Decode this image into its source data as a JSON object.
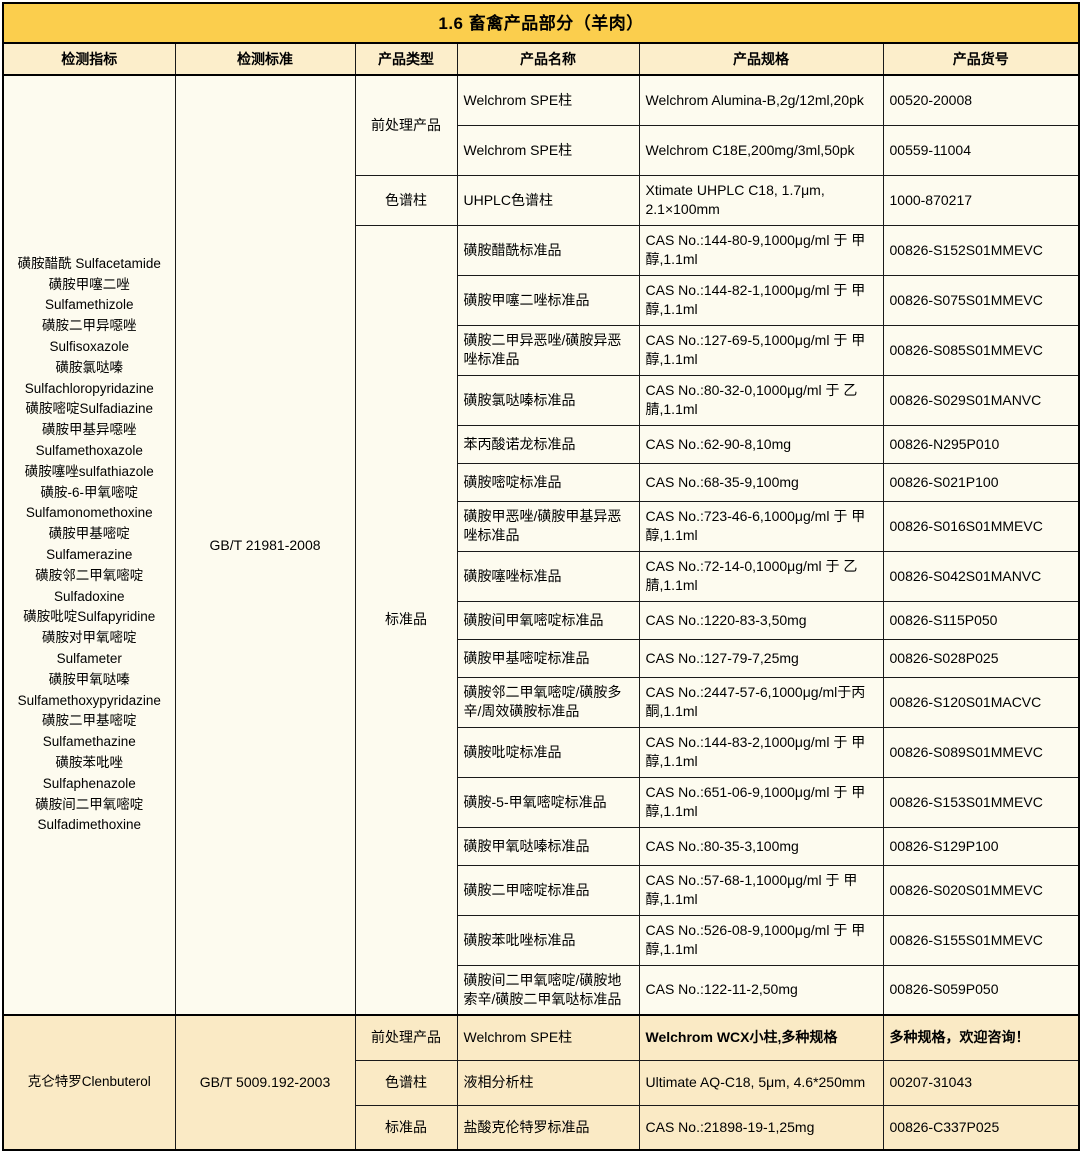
{
  "title": "1.6 畜禽产品部分（羊肉）",
  "columns": [
    "检测指标",
    "检测标准",
    "产品类型",
    "产品名称",
    "产品规格",
    "产品货号"
  ],
  "colors": {
    "title_bg": "#fbce4d",
    "header_bg": "#fceecb",
    "section1_bg": "#fdfbef",
    "section2_bg": "#faeac5",
    "border": "#1a1a1a",
    "text": "#000000"
  },
  "sections": [
    {
      "indicator_lines": [
        "磺胺醋酰  Sulfacetamide",
        "磺胺甲噻二唑",
        "Sulfamethizole",
        "磺胺二甲异噁唑",
        "Sulfisoxazole",
        "磺胺氯哒嗪",
        "Sulfachloropyridazine",
        "磺胺嘧啶Sulfadiazine",
        "磺胺甲基异噁唑",
        "Sulfamethoxazole",
        "磺胺噻唑sulfathiazole",
        "磺胺-6-甲氧嘧啶",
        "Sulfamonomethoxine",
        "磺胺甲基嘧啶",
        "Sulfamerazine",
        "磺胺邻二甲氧嘧啶",
        "Sulfadoxine",
        "磺胺吡啶Sulfapyridine",
        "磺胺对甲氧嘧啶",
        "Sulfameter",
        "磺胺甲氧哒嗪",
        "Sulfamethoxypyridazine",
        "磺胺二甲基嘧啶",
        "Sulfamethazine",
        "磺胺苯吡唑",
        "Sulfaphenazole",
        "磺胺间二甲氧嘧啶",
        "Sulfadimethoxine"
      ],
      "standard": "GB/T 21981-2008",
      "groups": [
        {
          "type": "前处理产品",
          "rows": [
            {
              "name": "Welchrom SPE柱",
              "spec": "Welchrom Alumina-B,2g/12ml,20pk",
              "code": "00520-20008",
              "tall": true
            },
            {
              "name": "Welchrom SPE柱",
              "spec": "Welchrom C18E,200mg/3ml,50pk",
              "code": "00559-11004",
              "tall": true
            }
          ]
        },
        {
          "type": "色谱柱",
          "rows": [
            {
              "name": "UHPLC色谱柱",
              "spec": "Xtimate UHPLC C18, 1.7μm, 2.1×100mm",
              "code": "1000-870217",
              "tall": true
            }
          ]
        },
        {
          "type": "标准品",
          "rows": [
            {
              "name": "磺胺醋酰标准品",
              "spec": "CAS No.:144-80-9,1000μg/ml 于 甲醇,1.1ml",
              "code": "00826-S152S01MMEVC",
              "tall": true
            },
            {
              "name": "磺胺甲噻二唑标准品",
              "spec": "CAS No.:144-82-1,1000μg/ml 于 甲醇,1.1ml",
              "code": "00826-S075S01MMEVC",
              "tall": true
            },
            {
              "name": "磺胺二甲异恶唑/磺胺异恶唑标准品",
              "spec": "CAS No.:127-69-5,1000μg/ml 于 甲醇,1.1ml",
              "code": "00826-S085S01MMEVC",
              "tall": true
            },
            {
              "name": "磺胺氯哒嗪标准品",
              "spec": "CAS No.:80-32-0,1000μg/ml 于 乙腈,1.1ml",
              "code": "00826-S029S01MANVC",
              "tall": true
            },
            {
              "name": "苯丙酸诺龙标准品",
              "spec": "CAS No.:62-90-8,10mg",
              "code": "00826-N295P010",
              "tall": false
            },
            {
              "name": "磺胺嘧啶标准品",
              "spec": "CAS No.:68-35-9,100mg",
              "code": "00826-S021P100",
              "tall": false
            },
            {
              "name": "磺胺甲恶唑/磺胺甲基异恶唑标准品",
              "spec": "CAS No.:723-46-6,1000μg/ml 于 甲醇,1.1ml",
              "code": "00826-S016S01MMEVC",
              "tall": true
            },
            {
              "name": "磺胺噻唑标准品",
              "spec": "CAS No.:72-14-0,1000μg/ml 于 乙腈,1.1ml",
              "code": "00826-S042S01MANVC",
              "tall": true
            },
            {
              "name": "磺胺间甲氧嘧啶标准品",
              "spec": "CAS No.:1220-83-3,50mg",
              "code": "00826-S115P050",
              "tall": false
            },
            {
              "name": "磺胺甲基嘧啶标准品",
              "spec": "CAS No.:127-79-7,25mg",
              "code": "00826-S028P025",
              "tall": false
            },
            {
              "name": "磺胺邻二甲氧嘧啶/磺胺多辛/周效磺胺标准品",
              "spec": "CAS No.:2447-57-6,1000μg/ml于丙酮,1.1ml",
              "code": "00826-S120S01MACVC",
              "tall": true
            },
            {
              "name": "磺胺吡啶标准品",
              "spec": "CAS No.:144-83-2,1000μg/ml 于 甲醇,1.1ml",
              "code": "00826-S089S01MMEVC",
              "tall": true
            },
            {
              "name": "磺胺-5-甲氧嘧啶标准品",
              "spec": "CAS No.:651-06-9,1000μg/ml 于 甲醇,1.1ml",
              "code": "00826-S153S01MMEVC",
              "tall": true
            },
            {
              "name": "磺胺甲氧哒嗪标准品",
              "spec": "CAS No.:80-35-3,100mg",
              "code": "00826-S129P100",
              "tall": false
            },
            {
              "name": "磺胺二甲嘧啶标准品",
              "spec": "CAS No.:57-68-1,1000μg/ml 于 甲醇,1.1ml",
              "code": "00826-S020S01MMEVC",
              "tall": true
            },
            {
              "name": "磺胺苯吡唑标准品",
              "spec": "CAS No.:526-08-9,1000μg/ml 于 甲醇,1.1ml",
              "code": "00826-S155S01MMEVC",
              "tall": true
            },
            {
              "name": "磺胺间二甲氧嘧啶/磺胺地索辛/磺胺二甲氧哒标准品",
              "spec": "CAS No.:122-11-2,50mg",
              "code": "00826-S059P050",
              "tall": true
            }
          ]
        }
      ]
    },
    {
      "indicator_lines": [
        "克仑特罗Clenbuterol"
      ],
      "standard": "GB/T 5009.192-2003",
      "groups": [
        {
          "type": "前处理产品",
          "rows": [
            {
              "name": "Welchrom SPE柱",
              "spec": "Welchrom WCX小柱,多种规格",
              "code": "多种规格，欢迎咨询！",
              "bold": true,
              "tall": false
            }
          ]
        },
        {
          "type": "色谱柱",
          "rows": [
            {
              "name": "液相分析柱",
              "spec": "Ultimate AQ-C18, 5μm, 4.6*250mm",
              "code": "00207-31043",
              "tall": true
            }
          ]
        },
        {
          "type": "标准品",
          "rows": [
            {
              "name": "盐酸克伦特罗标准品",
              "spec": "CAS No.:21898-19-1,25mg",
              "code": "00826-C337P025",
              "tall": false
            }
          ]
        }
      ]
    }
  ]
}
